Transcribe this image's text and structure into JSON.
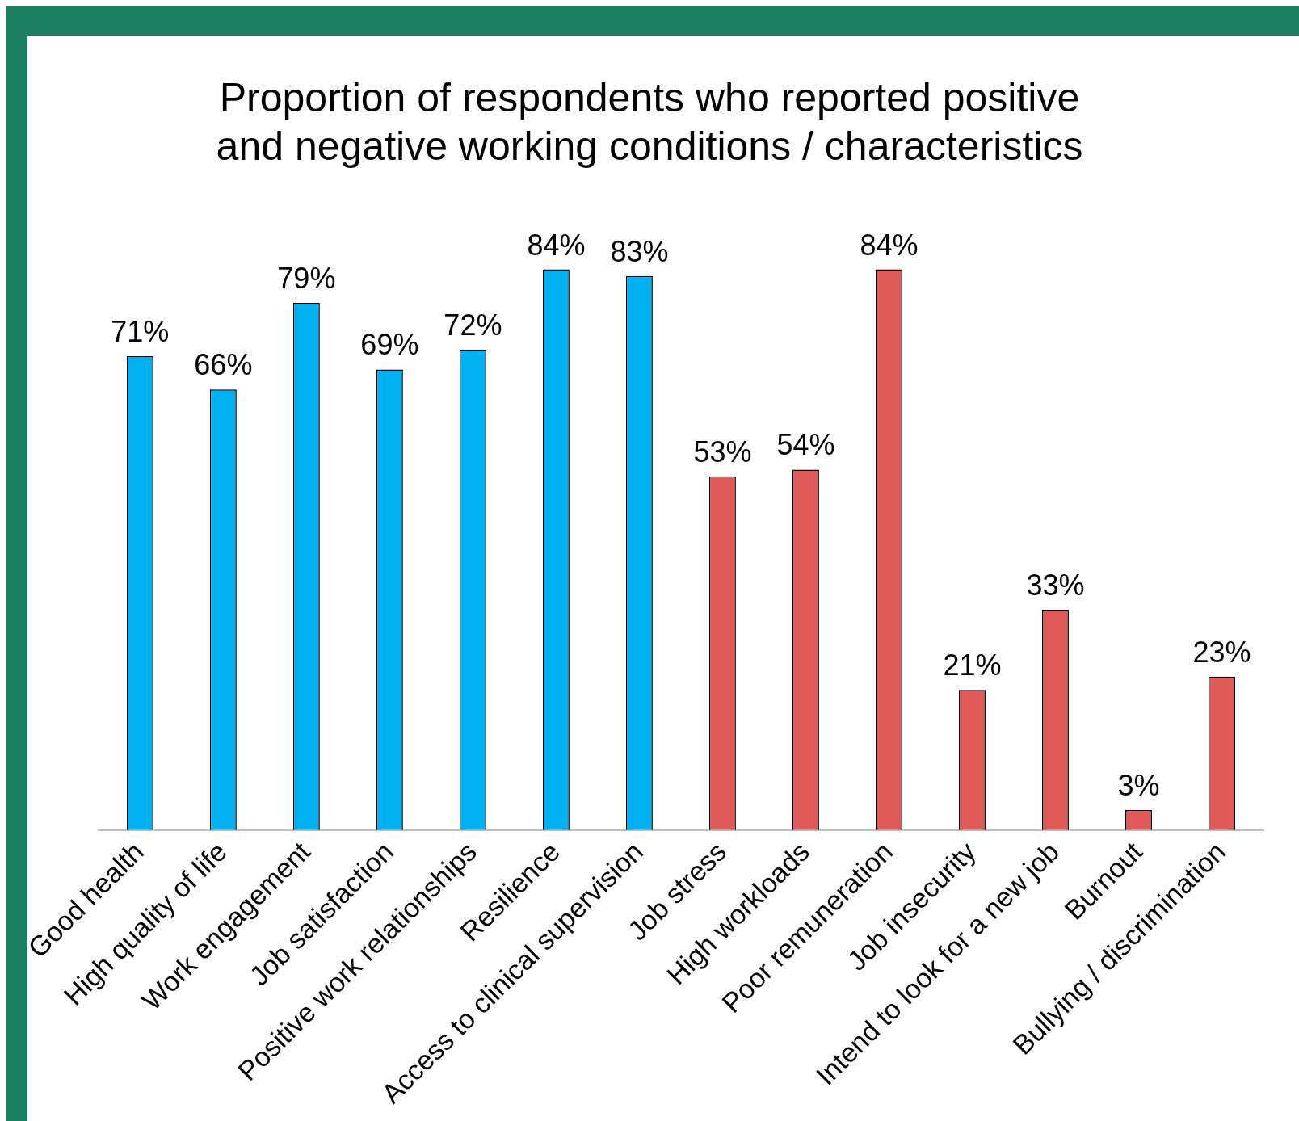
{
  "chart_data": {
    "type": "bar",
    "title": "Proportion of respondents who reported positive\nand negative working conditions / characteristics",
    "categories": [
      "Good health",
      "High quality of life",
      "Work engagement",
      "Job satisfaction",
      "Positive work relationships",
      "Resilience",
      "Access to clinical supervision",
      "Job stress",
      "High workloads",
      "Poor remuneration",
      "Job insecurity",
      "Intend to look for a new job",
      "Burnout",
      "Bullying / discrimination"
    ],
    "values": [
      71,
      66,
      79,
      69,
      72,
      84,
      83,
      53,
      54,
      84,
      21,
      33,
      3,
      23
    ],
    "value_labels": [
      "71%",
      "66%",
      "79%",
      "69%",
      "72%",
      "84%",
      "83%",
      "53%",
      "54%",
      "84%",
      "21%",
      "33%",
      "3%",
      "23%"
    ],
    "colors": [
      "#00b0f0",
      "#00b0f0",
      "#00b0f0",
      "#00b0f0",
      "#00b0f0",
      "#00b0f0",
      "#00b0f0",
      "#e05a5a",
      "#e05a5a",
      "#e05a5a",
      "#e05a5a",
      "#e05a5a",
      "#e05a5a",
      "#e05a5a"
    ],
    "grid": false,
    "legend": false
  }
}
